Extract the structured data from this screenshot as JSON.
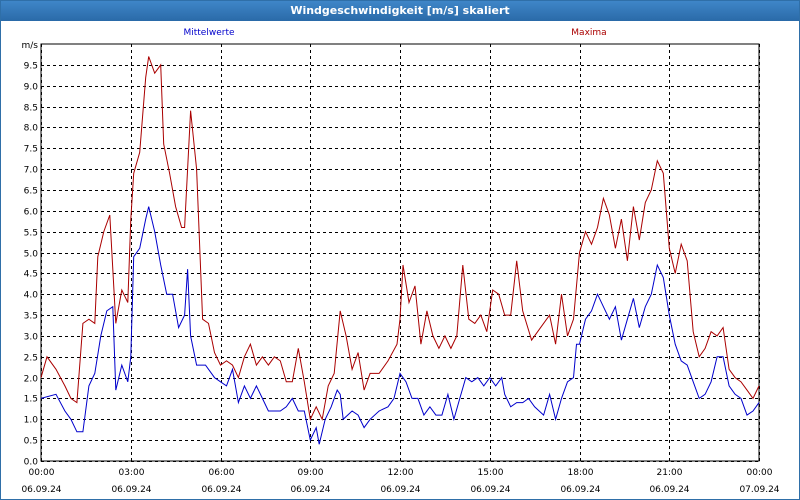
{
  "window": {
    "title": "Windgeschwindigkeit [m/s] skaliert"
  },
  "chart_data": {
    "type": "line",
    "title": "Windgeschwindigkeit [m/s] skaliert",
    "ylabel": "m/s",
    "xlabel": "",
    "ylim": [
      0,
      10
    ],
    "xlim": [
      0,
      24
    ],
    "grid": true,
    "y_ticks": [
      "0.0",
      "0.5",
      "1.0",
      "1.5",
      "2.0",
      "2.5",
      "3.0",
      "3.5",
      "4.0",
      "4.5",
      "5.0",
      "5.5",
      "6.0",
      "6.5",
      "7.0",
      "7.5",
      "8.0",
      "8.5",
      "9.0",
      "9.5"
    ],
    "x_ticks": [
      {
        "time": "00:00",
        "date": "06.09.24"
      },
      {
        "time": "03:00",
        "date": "06.09.24"
      },
      {
        "time": "06:00",
        "date": "06.09.24"
      },
      {
        "time": "09:00",
        "date": "06.09.24"
      },
      {
        "time": "12:00",
        "date": "06.09.24"
      },
      {
        "time": "15:00",
        "date": "06.09.24"
      },
      {
        "time": "18:00",
        "date": "06.09.24"
      },
      {
        "time": "21:00",
        "date": "06.09.24"
      },
      {
        "time": "00:00",
        "date": "07.09.24"
      }
    ],
    "series": [
      {
        "name": "Mittelwerte",
        "color": "#0000cc",
        "points": [
          [
            0,
            1.5
          ],
          [
            0.5,
            1.6
          ],
          [
            0.8,
            1.2
          ],
          [
            1.0,
            1.0
          ],
          [
            1.2,
            0.7
          ],
          [
            1.4,
            0.7
          ],
          [
            1.6,
            1.8
          ],
          [
            1.8,
            2.1
          ],
          [
            2.0,
            3.0
          ],
          [
            2.2,
            3.6
          ],
          [
            2.4,
            3.7
          ],
          [
            2.5,
            1.7
          ],
          [
            2.7,
            2.3
          ],
          [
            2.9,
            1.9
          ],
          [
            3.0,
            2.5
          ],
          [
            3.1,
            4.9
          ],
          [
            3.3,
            5.1
          ],
          [
            3.5,
            5.8
          ],
          [
            3.6,
            6.1
          ],
          [
            3.8,
            5.5
          ],
          [
            4.0,
            4.7
          ],
          [
            4.2,
            4.0
          ],
          [
            4.4,
            4.0
          ],
          [
            4.6,
            3.2
          ],
          [
            4.8,
            3.5
          ],
          [
            4.9,
            4.6
          ],
          [
            5.0,
            3.0
          ],
          [
            5.2,
            2.3
          ],
          [
            5.5,
            2.3
          ],
          [
            5.8,
            2.0
          ],
          [
            6.0,
            1.9
          ],
          [
            6.2,
            1.8
          ],
          [
            6.4,
            2.2
          ],
          [
            6.6,
            1.4
          ],
          [
            6.8,
            1.8
          ],
          [
            7.0,
            1.5
          ],
          [
            7.2,
            1.8
          ],
          [
            7.4,
            1.5
          ],
          [
            7.6,
            1.2
          ],
          [
            8.0,
            1.2
          ],
          [
            8.2,
            1.3
          ],
          [
            8.4,
            1.5
          ],
          [
            8.6,
            1.2
          ],
          [
            8.8,
            1.2
          ],
          [
            9.0,
            0.5
          ],
          [
            9.2,
            0.8
          ],
          [
            9.3,
            0.4
          ],
          [
            9.5,
            1.0
          ],
          [
            9.7,
            1.3
          ],
          [
            9.9,
            1.7
          ],
          [
            10.0,
            1.6
          ],
          [
            10.1,
            1.0
          ],
          [
            10.4,
            1.2
          ],
          [
            10.6,
            1.1
          ],
          [
            10.8,
            0.8
          ],
          [
            11.0,
            1.0
          ],
          [
            11.3,
            1.2
          ],
          [
            11.6,
            1.3
          ],
          [
            11.8,
            1.5
          ],
          [
            12.0,
            2.1
          ],
          [
            12.2,
            1.9
          ],
          [
            12.4,
            1.5
          ],
          [
            12.6,
            1.5
          ],
          [
            12.8,
            1.1
          ],
          [
            13.0,
            1.3
          ],
          [
            13.2,
            1.1
          ],
          [
            13.4,
            1.1
          ],
          [
            13.6,
            1.6
          ],
          [
            13.8,
            1.0
          ],
          [
            14.0,
            1.5
          ],
          [
            14.2,
            2.0
          ],
          [
            14.4,
            1.9
          ],
          [
            14.6,
            2.0
          ],
          [
            14.8,
            1.8
          ],
          [
            15.0,
            2.0
          ],
          [
            15.2,
            1.8
          ],
          [
            15.4,
            2.0
          ],
          [
            15.5,
            1.6
          ],
          [
            15.7,
            1.3
          ],
          [
            15.9,
            1.4
          ],
          [
            16.1,
            1.4
          ],
          [
            16.3,
            1.5
          ],
          [
            16.5,
            1.3
          ],
          [
            16.8,
            1.1
          ],
          [
            17.0,
            1.6
          ],
          [
            17.2,
            1.0
          ],
          [
            17.4,
            1.5
          ],
          [
            17.6,
            1.9
          ],
          [
            17.8,
            2.0
          ],
          [
            17.9,
            2.8
          ],
          [
            18.0,
            2.8
          ],
          [
            18.2,
            3.4
          ],
          [
            18.4,
            3.6
          ],
          [
            18.6,
            4.0
          ],
          [
            18.8,
            3.7
          ],
          [
            19.0,
            3.4
          ],
          [
            19.2,
            3.7
          ],
          [
            19.4,
            2.9
          ],
          [
            19.6,
            3.4
          ],
          [
            19.8,
            3.9
          ],
          [
            20.0,
            3.2
          ],
          [
            20.2,
            3.7
          ],
          [
            20.4,
            4.0
          ],
          [
            20.6,
            4.7
          ],
          [
            20.8,
            4.4
          ],
          [
            21.0,
            3.5
          ],
          [
            21.2,
            2.8
          ],
          [
            21.4,
            2.4
          ],
          [
            21.6,
            2.3
          ],
          [
            21.8,
            1.9
          ],
          [
            22.0,
            1.5
          ],
          [
            22.2,
            1.6
          ],
          [
            22.4,
            1.9
          ],
          [
            22.6,
            2.5
          ],
          [
            22.8,
            2.5
          ],
          [
            23.0,
            1.8
          ],
          [
            23.2,
            1.6
          ],
          [
            23.4,
            1.5
          ],
          [
            23.6,
            1.1
          ],
          [
            23.8,
            1.2
          ],
          [
            24.0,
            1.4
          ]
        ]
      },
      {
        "name": "Maxima",
        "color": "#aa0000",
        "points": [
          [
            0,
            2.0
          ],
          [
            0.2,
            2.5
          ],
          [
            0.5,
            2.2
          ],
          [
            0.8,
            1.8
          ],
          [
            1.0,
            1.5
          ],
          [
            1.2,
            1.4
          ],
          [
            1.4,
            3.3
          ],
          [
            1.6,
            3.4
          ],
          [
            1.8,
            3.3
          ],
          [
            1.9,
            4.9
          ],
          [
            2.1,
            5.5
          ],
          [
            2.3,
            5.9
          ],
          [
            2.5,
            3.3
          ],
          [
            2.7,
            4.1
          ],
          [
            2.9,
            3.8
          ],
          [
            3.0,
            5.8
          ],
          [
            3.1,
            6.9
          ],
          [
            3.3,
            7.4
          ],
          [
            3.5,
            9.2
          ],
          [
            3.6,
            9.7
          ],
          [
            3.8,
            9.3
          ],
          [
            4.0,
            9.5
          ],
          [
            4.1,
            7.6
          ],
          [
            4.3,
            6.9
          ],
          [
            4.5,
            6.1
          ],
          [
            4.7,
            5.6
          ],
          [
            4.8,
            5.6
          ],
          [
            5.0,
            8.4
          ],
          [
            5.2,
            7.0
          ],
          [
            5.4,
            3.4
          ],
          [
            5.6,
            3.3
          ],
          [
            5.8,
            2.6
          ],
          [
            6.0,
            2.3
          ],
          [
            6.2,
            2.4
          ],
          [
            6.4,
            2.3
          ],
          [
            6.6,
            2.0
          ],
          [
            6.8,
            2.5
          ],
          [
            7.0,
            2.8
          ],
          [
            7.2,
            2.3
          ],
          [
            7.4,
            2.5
          ],
          [
            7.6,
            2.3
          ],
          [
            7.8,
            2.5
          ],
          [
            8.0,
            2.4
          ],
          [
            8.2,
            1.9
          ],
          [
            8.4,
            1.9
          ],
          [
            8.6,
            2.7
          ],
          [
            8.8,
            1.9
          ],
          [
            9.0,
            1.0
          ],
          [
            9.2,
            1.3
          ],
          [
            9.4,
            1.0
          ],
          [
            9.6,
            1.8
          ],
          [
            9.8,
            2.1
          ],
          [
            10.0,
            3.6
          ],
          [
            10.2,
            3.0
          ],
          [
            10.4,
            2.2
          ],
          [
            10.6,
            2.6
          ],
          [
            10.8,
            1.7
          ],
          [
            11.0,
            2.1
          ],
          [
            11.3,
            2.1
          ],
          [
            11.6,
            2.4
          ],
          [
            11.9,
            2.8
          ],
          [
            12.0,
            3.4
          ],
          [
            12.1,
            4.7
          ],
          [
            12.3,
            3.8
          ],
          [
            12.5,
            4.2
          ],
          [
            12.7,
            2.8
          ],
          [
            12.9,
            3.6
          ],
          [
            13.1,
            3.0
          ],
          [
            13.3,
            2.7
          ],
          [
            13.5,
            3.0
          ],
          [
            13.7,
            2.7
          ],
          [
            13.9,
            3.0
          ],
          [
            14.1,
            4.7
          ],
          [
            14.3,
            3.4
          ],
          [
            14.5,
            3.3
          ],
          [
            14.7,
            3.5
          ],
          [
            14.9,
            3.1
          ],
          [
            15.1,
            4.1
          ],
          [
            15.3,
            4.0
          ],
          [
            15.5,
            3.5
          ],
          [
            15.7,
            3.5
          ],
          [
            15.9,
            4.8
          ],
          [
            16.1,
            3.6
          ],
          [
            16.4,
            2.9
          ],
          [
            16.7,
            3.2
          ],
          [
            17.0,
            3.5
          ],
          [
            17.2,
            2.8
          ],
          [
            17.4,
            4.0
          ],
          [
            17.6,
            3.0
          ],
          [
            17.8,
            3.4
          ],
          [
            18.0,
            5.0
          ],
          [
            18.2,
            5.5
          ],
          [
            18.4,
            5.2
          ],
          [
            18.6,
            5.6
          ],
          [
            18.8,
            6.3
          ],
          [
            19.0,
            5.9
          ],
          [
            19.2,
            5.1
          ],
          [
            19.4,
            5.8
          ],
          [
            19.6,
            4.8
          ],
          [
            19.8,
            6.1
          ],
          [
            20.0,
            5.3
          ],
          [
            20.2,
            6.2
          ],
          [
            20.4,
            6.5
          ],
          [
            20.6,
            7.2
          ],
          [
            20.8,
            6.9
          ],
          [
            21.0,
            5.1
          ],
          [
            21.2,
            4.5
          ],
          [
            21.4,
            5.2
          ],
          [
            21.6,
            4.8
          ],
          [
            21.8,
            3.1
          ],
          [
            22.0,
            2.5
          ],
          [
            22.2,
            2.7
          ],
          [
            22.4,
            3.1
          ],
          [
            22.6,
            3.0
          ],
          [
            22.8,
            3.2
          ],
          [
            23.0,
            2.2
          ],
          [
            23.2,
            2.0
          ],
          [
            23.4,
            1.9
          ],
          [
            23.6,
            1.7
          ],
          [
            23.8,
            1.5
          ],
          [
            24.0,
            1.8
          ]
        ]
      }
    ]
  }
}
